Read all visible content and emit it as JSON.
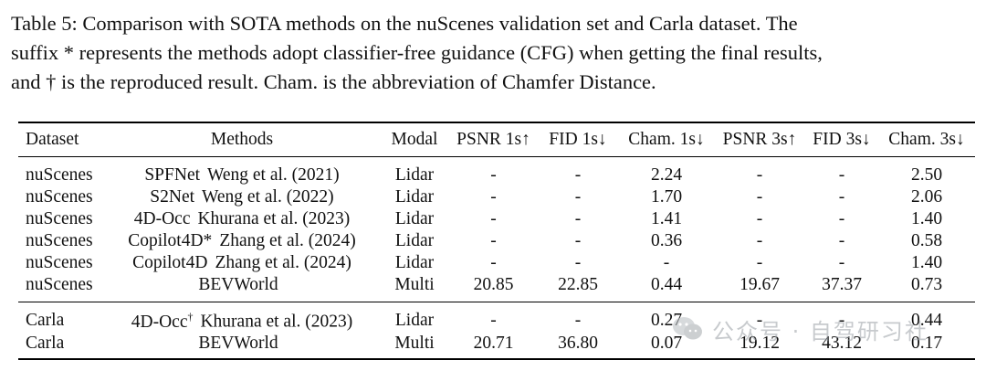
{
  "caption": [
    "Table 5: Comparison with SOTA methods on the nuScenes validation set and Carla dataset. The",
    "suffix * represents the methods adopt classifier-free guidance (CFG) when getting the final results,",
    "and † is the reproduced result. Cham. is the abbreviation of Chamfer Distance."
  ],
  "headers": [
    "Dataset",
    "Methods",
    "Modal",
    "PSNR 1s↑",
    "FID 1s↓",
    "Cham. 1s↓",
    "PSNR 3s↑",
    "FID 3s↓",
    "Cham. 3s↓"
  ],
  "groups": [
    {
      "rows": [
        {
          "dataset": "nuScenes",
          "method": "SPFNet",
          "sup": "",
          "ref": "Weng et al. (2021)",
          "modal": "Lidar",
          "psnr1": "-",
          "fid1": "-",
          "cham1": "2.24",
          "psnr3": "-",
          "fid3": "-",
          "cham3": "2.50"
        },
        {
          "dataset": "nuScenes",
          "method": "S2Net",
          "sup": "",
          "ref": "Weng et al. (2022)",
          "modal": "Lidar",
          "psnr1": "-",
          "fid1": "-",
          "cham1": "1.70",
          "psnr3": "-",
          "fid3": "-",
          "cham3": "2.06"
        },
        {
          "dataset": "nuScenes",
          "method": "4D-Occ",
          "sup": "",
          "ref": "Khurana et al. (2023)",
          "modal": "Lidar",
          "psnr1": "-",
          "fid1": "-",
          "cham1": "1.41",
          "psnr3": "-",
          "fid3": "-",
          "cham3": "1.40"
        },
        {
          "dataset": "nuScenes",
          "method": "Copilot4D*",
          "sup": "",
          "ref": "Zhang et al. (2024)",
          "modal": "Lidar",
          "psnr1": "-",
          "fid1": "-",
          "cham1": "0.36",
          "psnr3": "-",
          "fid3": "-",
          "cham3": "0.58"
        },
        {
          "dataset": "nuScenes",
          "method": "Copilot4D",
          "sup": "",
          "ref": "Zhang et al. (2024)",
          "modal": "Lidar",
          "psnr1": "-",
          "fid1": "-",
          "cham1": "-",
          "psnr3": "-",
          "fid3": "-",
          "cham3": "1.40"
        },
        {
          "dataset": "nuScenes",
          "method": "BEVWorld",
          "sup": "",
          "ref": "",
          "modal": "Multi",
          "psnr1": "20.85",
          "fid1": "22.85",
          "cham1": "0.44",
          "psnr3": "19.67",
          "fid3": "37.37",
          "cham3": "0.73"
        }
      ]
    },
    {
      "rows": [
        {
          "dataset": "Carla",
          "method": "4D-Occ",
          "sup": "†",
          "ref": "Khurana et al. (2023)",
          "modal": "Lidar",
          "psnr1": "-",
          "fid1": "-",
          "cham1": "0.27",
          "psnr3": "-",
          "fid3": "-",
          "cham3": "0.44"
        },
        {
          "dataset": "Carla",
          "method": "BEVWorld",
          "sup": "",
          "ref": "",
          "modal": "Multi",
          "psnr1": "20.71",
          "fid1": "36.80",
          "cham1": "0.07",
          "psnr3": "19.12",
          "fid3": "43.12",
          "cham3": "0.17"
        }
      ]
    }
  ],
  "watermark": {
    "text": "公众号 · 自驾研习社",
    "icon": "wechat-icon",
    "color": "#9aa0a6"
  }
}
